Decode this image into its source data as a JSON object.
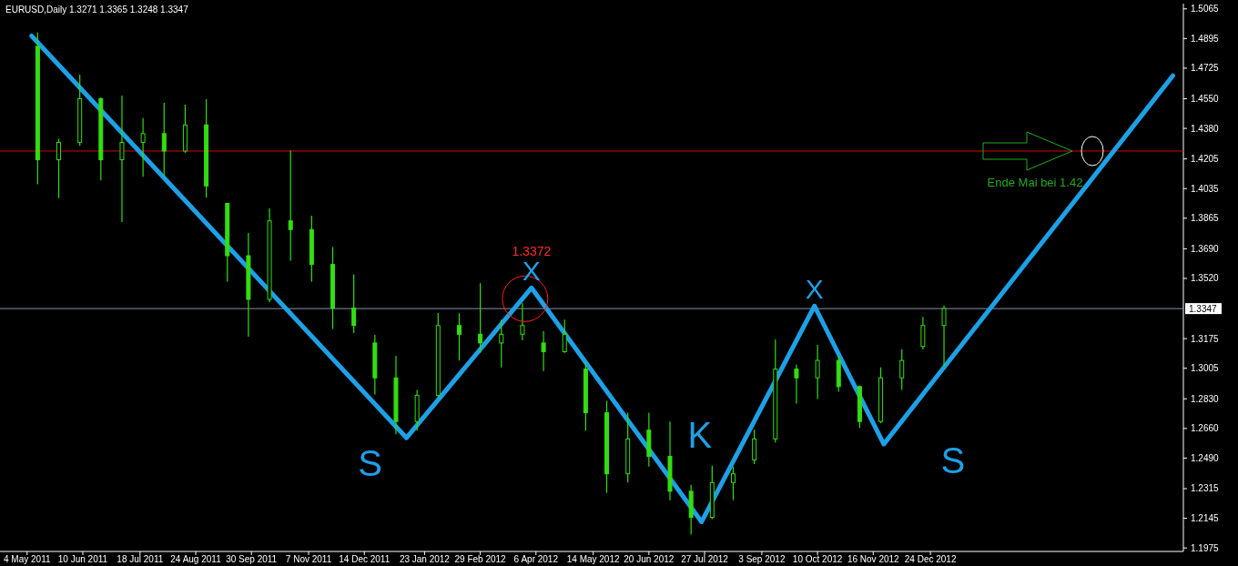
{
  "chart_data": {
    "type": "candlestick",
    "title": "EURUSD,Daily  1.3271 1.3365 1.3248 1.3347",
    "xlim": [
      "2011-04-16",
      "2013-06-10"
    ],
    "xticks": [
      {
        "value": "2011-05-04",
        "label": "4 May 2011"
      },
      {
        "value": "2011-06-10",
        "label": "10 Jun 2011"
      },
      {
        "value": "2011-07-18",
        "label": "18 Jul 2011"
      },
      {
        "value": "2011-08-24",
        "label": "24 Aug 2011"
      },
      {
        "value": "2011-09-30",
        "label": "30 Sep 2011"
      },
      {
        "value": "2011-11-07",
        "label": "7 Nov 2011"
      },
      {
        "value": "2011-12-14",
        "label": "14 Dec 2011"
      },
      {
        "value": "2012-01-23",
        "label": "23 Jan 2012"
      },
      {
        "value": "2012-02-29",
        "label": "29 Feb 2012"
      },
      {
        "value": "2012-04-06",
        "label": "6 Apr 2012"
      },
      {
        "value": "2012-05-14",
        "label": "14 May 2012"
      },
      {
        "value": "2012-06-20",
        "label": "20 Jun 2012"
      },
      {
        "value": "2012-07-27",
        "label": "27 Jul 2012"
      },
      {
        "value": "2012-09-03",
        "label": "3 Sep 2012"
      },
      {
        "value": "2012-10-10",
        "label": "10 Oct 2012"
      },
      {
        "value": "2012-11-16",
        "label": "16 Nov 2012"
      },
      {
        "value": "2012-12-24",
        "label": "24 Dec 2012"
      }
    ],
    "ylim": [
      1.1955,
      1.5095
    ],
    "yticks": [
      {
        "value": 1.5065,
        "label": "1.5065"
      },
      {
        "value": 1.4895,
        "label": "1.4895"
      },
      {
        "value": 1.4725,
        "label": "1.4725"
      },
      {
        "value": 1.455,
        "label": "1.4550"
      },
      {
        "value": 1.438,
        "label": "1.4380"
      },
      {
        "value": 1.4205,
        "label": "1.4205"
      },
      {
        "value": 1.4035,
        "label": "1.4035"
      },
      {
        "value": 1.3865,
        "label": "1.3865"
      },
      {
        "value": 1.369,
        "label": "1.3690"
      },
      {
        "value": 1.352,
        "label": "1.3520"
      },
      {
        "value": 1.3175,
        "label": "1.3175"
      },
      {
        "value": 1.3005,
        "label": "1.3005"
      },
      {
        "value": 1.283,
        "label": "1.2830"
      },
      {
        "value": 1.266,
        "label": "1.2660"
      },
      {
        "value": 1.249,
        "label": "1.2490"
      },
      {
        "value": 1.2315,
        "label": "1.2315"
      },
      {
        "value": 1.2145,
        "label": "1.2145"
      },
      {
        "value": 1.1975,
        "label": "1.1975"
      }
    ],
    "series": [
      {
        "color": "#33dd11",
        "x": [
          "2011-05-11",
          "2011-05-25",
          "2011-06-08",
          "2011-06-22",
          "2011-07-06",
          "2011-07-20",
          "2011-08-03",
          "2011-08-17",
          "2011-08-31",
          "2011-09-14",
          "2011-09-28",
          "2011-10-12",
          "2011-10-26",
          "2011-11-09",
          "2011-11-23",
          "2011-12-07",
          "2011-12-21",
          "2012-01-04",
          "2012-01-18",
          "2012-02-01",
          "2012-02-15",
          "2012-02-29",
          "2012-03-14",
          "2012-03-28",
          "2012-04-11",
          "2012-04-25",
          "2012-05-09",
          "2012-05-23",
          "2012-06-06",
          "2012-06-20",
          "2012-07-04",
          "2012-07-18",
          "2012-08-01",
          "2012-08-15",
          "2012-08-29",
          "2012-09-12",
          "2012-09-26",
          "2012-10-10",
          "2012-10-24",
          "2012-11-07",
          "2012-11-21",
          "2012-12-05",
          "2012-12-19",
          "2013-01-02"
        ],
        "ohlc": [
          [
            1.485,
            1.493,
            1.406,
            1.42
          ],
          [
            1.42,
            1.432,
            1.398,
            1.43
          ],
          [
            1.43,
            1.4687,
            1.428,
            1.455
          ],
          [
            1.455,
            1.4558,
            1.4082,
            1.42
          ],
          [
            1.42,
            1.4568,
            1.3843,
            1.43
          ],
          [
            1.43,
            1.4439,
            1.4103,
            1.435
          ],
          [
            1.435,
            1.4527,
            1.4103,
            1.425
          ],
          [
            1.425,
            1.4516,
            1.424,
            1.44
          ],
          [
            1.44,
            1.4547,
            1.3983,
            1.405
          ],
          [
            1.395,
            1.3952,
            1.3502,
            1.365
          ],
          [
            1.365,
            1.3781,
            1.3186,
            1.34
          ],
          [
            1.34,
            1.3921,
            1.3383,
            1.385
          ],
          [
            1.385,
            1.4252,
            1.3621,
            1.38
          ],
          [
            1.38,
            1.388,
            1.3502,
            1.36
          ],
          [
            1.36,
            1.37,
            1.323,
            1.335
          ],
          [
            1.335,
            1.3543,
            1.3207,
            1.325
          ],
          [
            1.315,
            1.3197,
            1.2855,
            1.295
          ],
          [
            1.295,
            1.3077,
            1.2627,
            1.27
          ],
          [
            1.27,
            1.2881,
            1.2648,
            1.285
          ],
          [
            1.285,
            1.3321,
            1.284,
            1.325
          ],
          [
            1.325,
            1.332,
            1.305,
            1.32
          ],
          [
            1.32,
            1.3492,
            1.3093,
            1.315
          ],
          [
            1.315,
            1.3284,
            1.301,
            1.32
          ],
          [
            1.32,
            1.3378,
            1.3165,
            1.325
          ],
          [
            1.315,
            1.3217,
            1.2989,
            1.31
          ],
          [
            1.31,
            1.3284,
            1.3093,
            1.32
          ],
          [
            1.3,
            1.3041,
            1.2648,
            1.275
          ],
          [
            1.275,
            1.2819,
            1.2291,
            1.24
          ],
          [
            1.24,
            1.2751,
            1.235,
            1.26
          ],
          [
            1.265,
            1.2751,
            1.2441,
            1.25
          ],
          [
            1.25,
            1.27,
            1.2249,
            1.23
          ],
          [
            1.23,
            1.2337,
            1.2053,
            1.215
          ],
          [
            1.215,
            1.2446,
            1.214,
            1.235
          ],
          [
            1.235,
            1.2441,
            1.2249,
            1.24
          ],
          [
            1.248,
            1.2653,
            1.2456,
            1.26
          ],
          [
            1.26,
            1.317,
            1.258,
            1.3
          ],
          [
            1.3,
            1.3026,
            1.2803,
            1.295
          ],
          [
            1.295,
            1.3139,
            1.2829,
            1.305
          ],
          [
            1.305,
            1.3077,
            1.287,
            1.29
          ],
          [
            1.29,
            1.2907,
            1.2663,
            1.27
          ],
          [
            1.27,
            1.301,
            1.269,
            1.295
          ],
          [
            1.295,
            1.3113,
            1.2881,
            1.305
          ],
          [
            1.313,
            1.33,
            1.3113,
            1.325
          ],
          [
            1.325,
            1.3365,
            1.3015,
            1.3347
          ]
        ]
      },
      {
        "type": "line",
        "color": "#1ea0e6",
        "x": [
          "2011-05-07",
          "2012-01-11",
          "2012-04-03",
          "2012-07-25",
          "2012-10-08",
          "2012-11-23",
          "2013-06-03"
        ],
        "values": [
          1.491,
          1.2606,
          1.3466,
          1.2125,
          1.3362,
          1.257,
          1.4682
        ]
      }
    ],
    "ref_lines": [
      {
        "axis": "y",
        "value": 1.425,
        "color": "#cc0000"
      },
      {
        "axis": "y",
        "value": 1.3347,
        "label": "1.3347",
        "color": "#8890a8"
      }
    ],
    "annotations": [
      "1.3372",
      "S",
      {
        "text": "X",
        "x": "2012-04-03",
        "y": 1.3466
      },
      "K",
      {
        "text": "X",
        "x": "2012-10-08",
        "y": 1.3362
      },
      "S",
      "Ende Mai bei 1.42"
    ]
  }
}
